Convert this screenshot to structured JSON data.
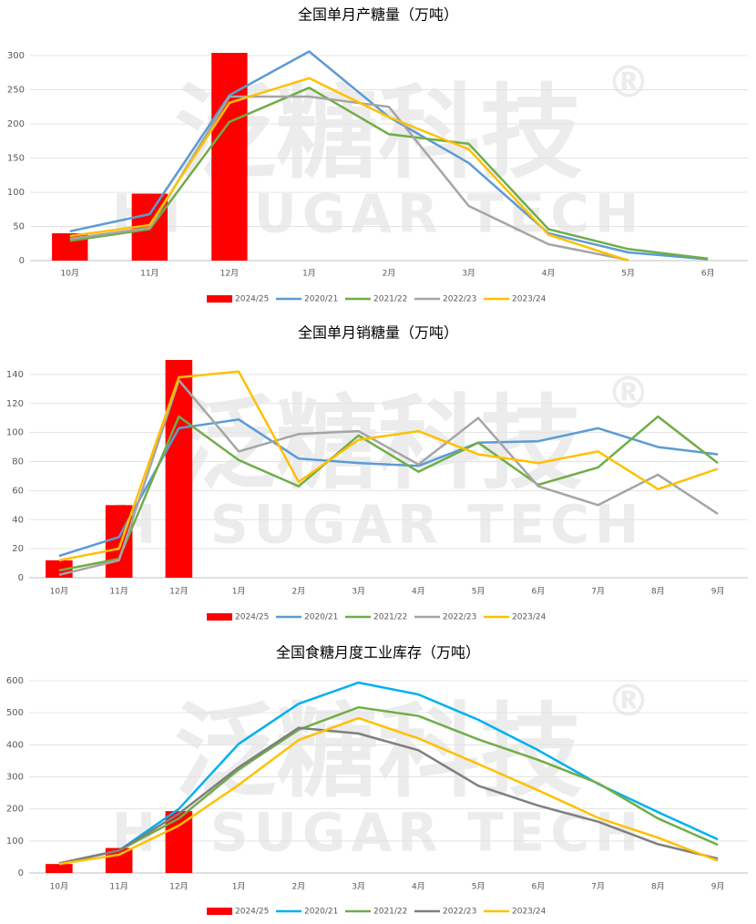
{
  "watermark": {
    "text": "泛糖科技",
    "mark": "®",
    "subtitle": "HI SUGAR TECH"
  },
  "chart_data": [
    {
      "type": "combo",
      "title": "全国单月产糖量（万吨）",
      "categories": [
        "10月",
        "11月",
        "12月",
        "1月",
        "2月",
        "3月",
        "4月",
        "5月",
        "6月"
      ],
      "ylim": [
        0,
        300
      ],
      "yticks": [
        0,
        50,
        100,
        150,
        200,
        250,
        300
      ],
      "grid": true,
      "legend": "bottom",
      "series": [
        {
          "name": "2024/25",
          "kind": "bar",
          "color": "#ff0000",
          "values": [
            40,
            98,
            304,
            null,
            null,
            null,
            null,
            null,
            null
          ]
        },
        {
          "name": "2020/21",
          "kind": "line",
          "color": "#5b9bd5",
          "values": [
            43,
            68,
            242,
            306,
            210,
            143,
            40,
            12,
            2
          ]
        },
        {
          "name": "2021/22",
          "kind": "line",
          "color": "#70ad47",
          "values": [
            29,
            46,
            203,
            253,
            185,
            171,
            46,
            17,
            3
          ]
        },
        {
          "name": "2022/23",
          "kind": "line",
          "color": "#a5a5a5",
          "values": [
            32,
            48,
            240,
            240,
            225,
            80,
            24,
            1,
            null
          ]
        },
        {
          "name": "2023/24",
          "kind": "line",
          "color": "#ffc000",
          "values": [
            36,
            52,
            231,
            267,
            210,
            163,
            38,
            0,
            null
          ]
        }
      ]
    },
    {
      "type": "combo",
      "title": "全国单月销糖量（万吨）",
      "categories": [
        "10月",
        "11月",
        "12月",
        "1月",
        "2月",
        "3月",
        "4月",
        "5月",
        "6月",
        "7月",
        "8月",
        "9月"
      ],
      "ylim": [
        0,
        150
      ],
      "yticks": [
        0,
        20,
        40,
        60,
        80,
        100,
        120,
        140
      ],
      "grid": true,
      "legend": "bottom",
      "series": [
        {
          "name": "2024/25",
          "kind": "bar",
          "color": "#ff0000",
          "values": [
            12,
            50,
            150,
            null,
            null,
            null,
            null,
            null,
            null,
            null,
            null,
            null
          ]
        },
        {
          "name": "2020/21",
          "kind": "line",
          "color": "#5b9bd5",
          "values": [
            15,
            28,
            103,
            109,
            82,
            79,
            77,
            93,
            94,
            103,
            90,
            85
          ]
        },
        {
          "name": "2021/22",
          "kind": "line",
          "color": "#70ad47",
          "values": [
            5,
            13,
            111,
            81,
            63,
            98,
            73,
            93,
            64,
            76,
            111,
            79
          ]
        },
        {
          "name": "2022/23",
          "kind": "line",
          "color": "#a5a5a5",
          "values": [
            2,
            12,
            136,
            87,
            99,
            101,
            78,
            110,
            63,
            50,
            71,
            44
          ]
        },
        {
          "name": "2023/24",
          "kind": "line",
          "color": "#ffc000",
          "values": [
            12,
            20,
            138,
            142,
            66,
            95,
            101,
            85,
            79,
            87,
            61,
            75
          ]
        }
      ]
    },
    {
      "type": "combo",
      "title": "全国食糖月度工业库存（万吨）",
      "categories": [
        "10月",
        "11月",
        "12月",
        "1月",
        "2月",
        "3月",
        "4月",
        "5月",
        "6月",
        "7月",
        "8月",
        "9月"
      ],
      "ylim": [
        0,
        600
      ],
      "yticks": [
        0,
        100,
        200,
        300,
        400,
        500,
        600
      ],
      "grid": true,
      "legend": "bottom",
      "series": [
        {
          "name": "2024/25",
          "kind": "bar",
          "color": "#ff0000",
          "values": [
            28,
            78,
            193,
            null,
            null,
            null,
            null,
            null,
            null,
            null,
            null,
            null
          ]
        },
        {
          "name": "2020/21",
          "kind": "line",
          "color": "#00b0f0",
          "values": [
            30,
            70,
            200,
            403,
            528,
            594,
            557,
            478,
            383,
            278,
            190,
            105
          ]
        },
        {
          "name": "2021/22",
          "kind": "line",
          "color": "#70ad47",
          "values": [
            30,
            70,
            170,
            323,
            447,
            517,
            490,
            417,
            353,
            280,
            170,
            88
          ]
        },
        {
          "name": "2022/23",
          "kind": "line",
          "color": "#7f7f7f",
          "values": [
            30,
            70,
            185,
            330,
            453,
            435,
            383,
            272,
            210,
            160,
            90,
            45
          ]
        },
        {
          "name": "2023/24",
          "kind": "line",
          "color": "#ffc000",
          "values": [
            28,
            57,
            148,
            275,
            415,
            483,
            420,
            340,
            258,
            172,
            110,
            38
          ]
        }
      ]
    }
  ]
}
